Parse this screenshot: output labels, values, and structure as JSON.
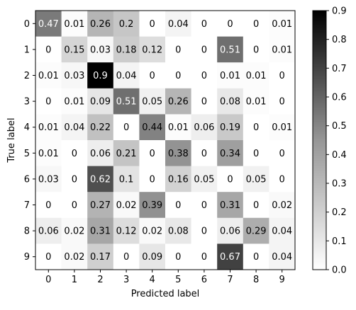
{
  "chart_data": {
    "type": "heatmap",
    "title": "",
    "xlabel": "Predicted label",
    "ylabel": "True label",
    "x_ticks": [
      "0",
      "1",
      "2",
      "3",
      "4",
      "5",
      "6",
      "7",
      "8",
      "9"
    ],
    "y_ticks": [
      "0",
      "1",
      "2",
      "3",
      "4",
      "5",
      "6",
      "7",
      "8",
      "9"
    ],
    "colormap": "Greys",
    "vmin": 0.0,
    "vmax": 0.9,
    "colorbar_ticks": [
      "0.0",
      "0.1",
      "0.2",
      "0.3",
      "0.4",
      "0.5",
      "0.6",
      "0.7",
      "0.8",
      "0.9"
    ],
    "colorbar_tick_values": [
      0.0,
      0.1,
      0.2,
      0.3,
      0.4,
      0.5,
      0.6,
      0.7,
      0.8,
      0.9
    ],
    "values": [
      [
        0.47,
        0.01,
        0.26,
        0.2,
        0,
        0.04,
        0,
        0,
        0,
        0.01
      ],
      [
        0,
        0.15,
        0.03,
        0.18,
        0.12,
        0,
        0,
        0.51,
        0,
        0.01
      ],
      [
        0.01,
        0.03,
        0.9,
        0.04,
        0,
        0,
        0,
        0.01,
        0.01,
        0
      ],
      [
        0,
        0.01,
        0.09,
        0.51,
        0.05,
        0.26,
        0,
        0.08,
        0.01,
        0
      ],
      [
        0.01,
        0.04,
        0.22,
        0,
        0.44,
        0.01,
        0.06,
        0.19,
        0,
        0.01
      ],
      [
        0.01,
        0,
        0.06,
        0.21,
        0,
        0.38,
        0,
        0.34,
        0,
        0
      ],
      [
        0.03,
        0,
        0.62,
        0.1,
        0,
        0.16,
        0.05,
        0,
        0.05,
        0
      ],
      [
        0,
        0,
        0.27,
        0.02,
        0.39,
        0,
        0,
        0.31,
        0,
        0.02
      ],
      [
        0.06,
        0.02,
        0.31,
        0.12,
        0.02,
        0.08,
        0,
        0.06,
        0.29,
        0.04
      ],
      [
        0,
        0.02,
        0.17,
        0,
        0.09,
        0,
        0,
        0.67,
        0,
        0.04
      ]
    ]
  }
}
